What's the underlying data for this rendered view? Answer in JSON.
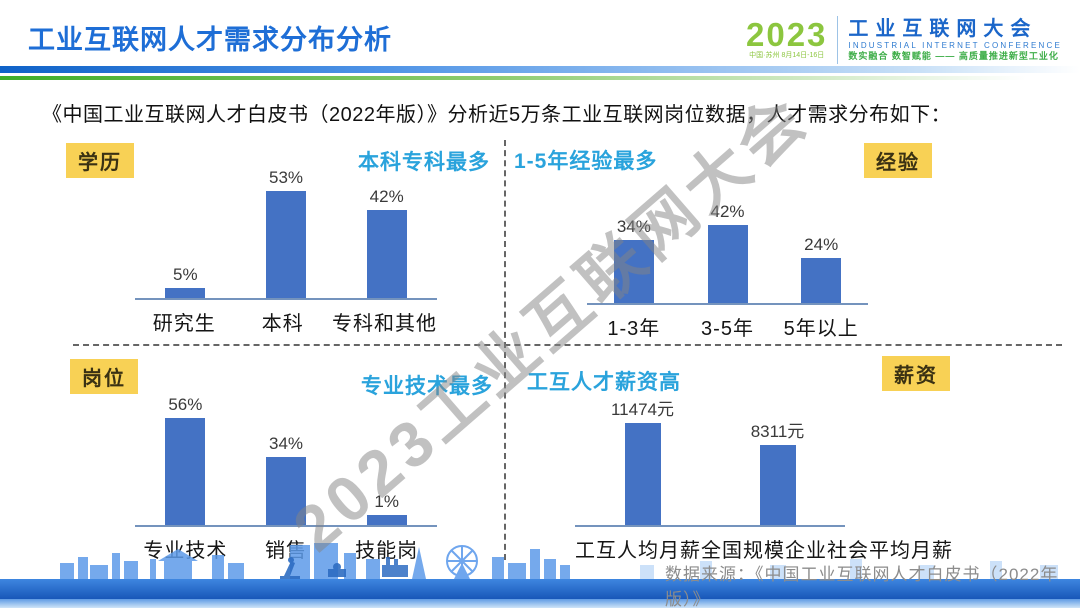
{
  "header": {
    "title": "工业互联网人才需求分布分析",
    "logo": {
      "year": "2023",
      "venue": "中国·苏州  8月14日-16日",
      "name_cn": "工业互联网大会",
      "name_en": "INDUSTRIAL INTERNET CONFERENCE",
      "slogan": "数实融合  数智赋能 —— 高质量推进新型工业化"
    }
  },
  "intro": "《中国工业互联网人才白皮书（2022年版）》分析近5万条工业互联网岗位数据，人才需求分布如下：",
  "watermark": "2023工业互联网大会",
  "colors": {
    "bar": "#4472c4",
    "badge_bg": "#f8d155",
    "highlight_text": "#2aa3dc",
    "title_blue": "#1e6ed6",
    "logo_green": "#8cc63f",
    "axis": "#7493bd",
    "watermark_grey": "#848484",
    "source_grey": "#8c8c8c"
  },
  "chart_data": [
    {
      "id": "education",
      "type": "bar",
      "badge": "学历",
      "highlight": "本科专科最多",
      "categories": [
        "研究生",
        "本科",
        "专科和其他"
      ],
      "values": [
        5,
        53,
        42
      ],
      "labels": [
        "5%",
        "53%",
        "42%"
      ],
      "ylim": [
        0,
        62
      ],
      "grid": false,
      "legend": "none"
    },
    {
      "id": "experience",
      "type": "bar",
      "badge": "经验",
      "highlight": "1-5年经验最多",
      "categories": [
        "1-3年",
        "3-5年",
        "5年以上"
      ],
      "values": [
        34,
        42,
        24
      ],
      "labels": [
        "34%",
        "42%",
        "24%"
      ],
      "ylim": [
        0,
        70
      ],
      "grid": false,
      "legend": "none"
    },
    {
      "id": "position",
      "type": "bar",
      "badge": "岗位",
      "highlight": "专业技术最多",
      "categories": [
        "专业技术",
        "销售",
        "技能岗"
      ],
      "values": [
        56,
        34,
        1
      ],
      "labels": [
        "56%",
        "34%",
        "1%"
      ],
      "ylim": [
        0,
        65
      ],
      "grid": false,
      "legend": "none"
    },
    {
      "id": "salary",
      "type": "bar",
      "badge": "薪资",
      "highlight": "工互人才薪资高",
      "categories": [
        "工互人均月薪",
        "全国规模企业社会平均月薪"
      ],
      "values": [
        11474,
        8311
      ],
      "labels": [
        "11474元",
        "8311元"
      ],
      "ylim": [
        0,
        13500
      ],
      "grid": false,
      "legend": "none"
    }
  ],
  "footer": {
    "source": "数据来源：《中国工业互联网人才白皮书（2022年版）》",
    "decoration": "city-skyline-silhouette"
  }
}
